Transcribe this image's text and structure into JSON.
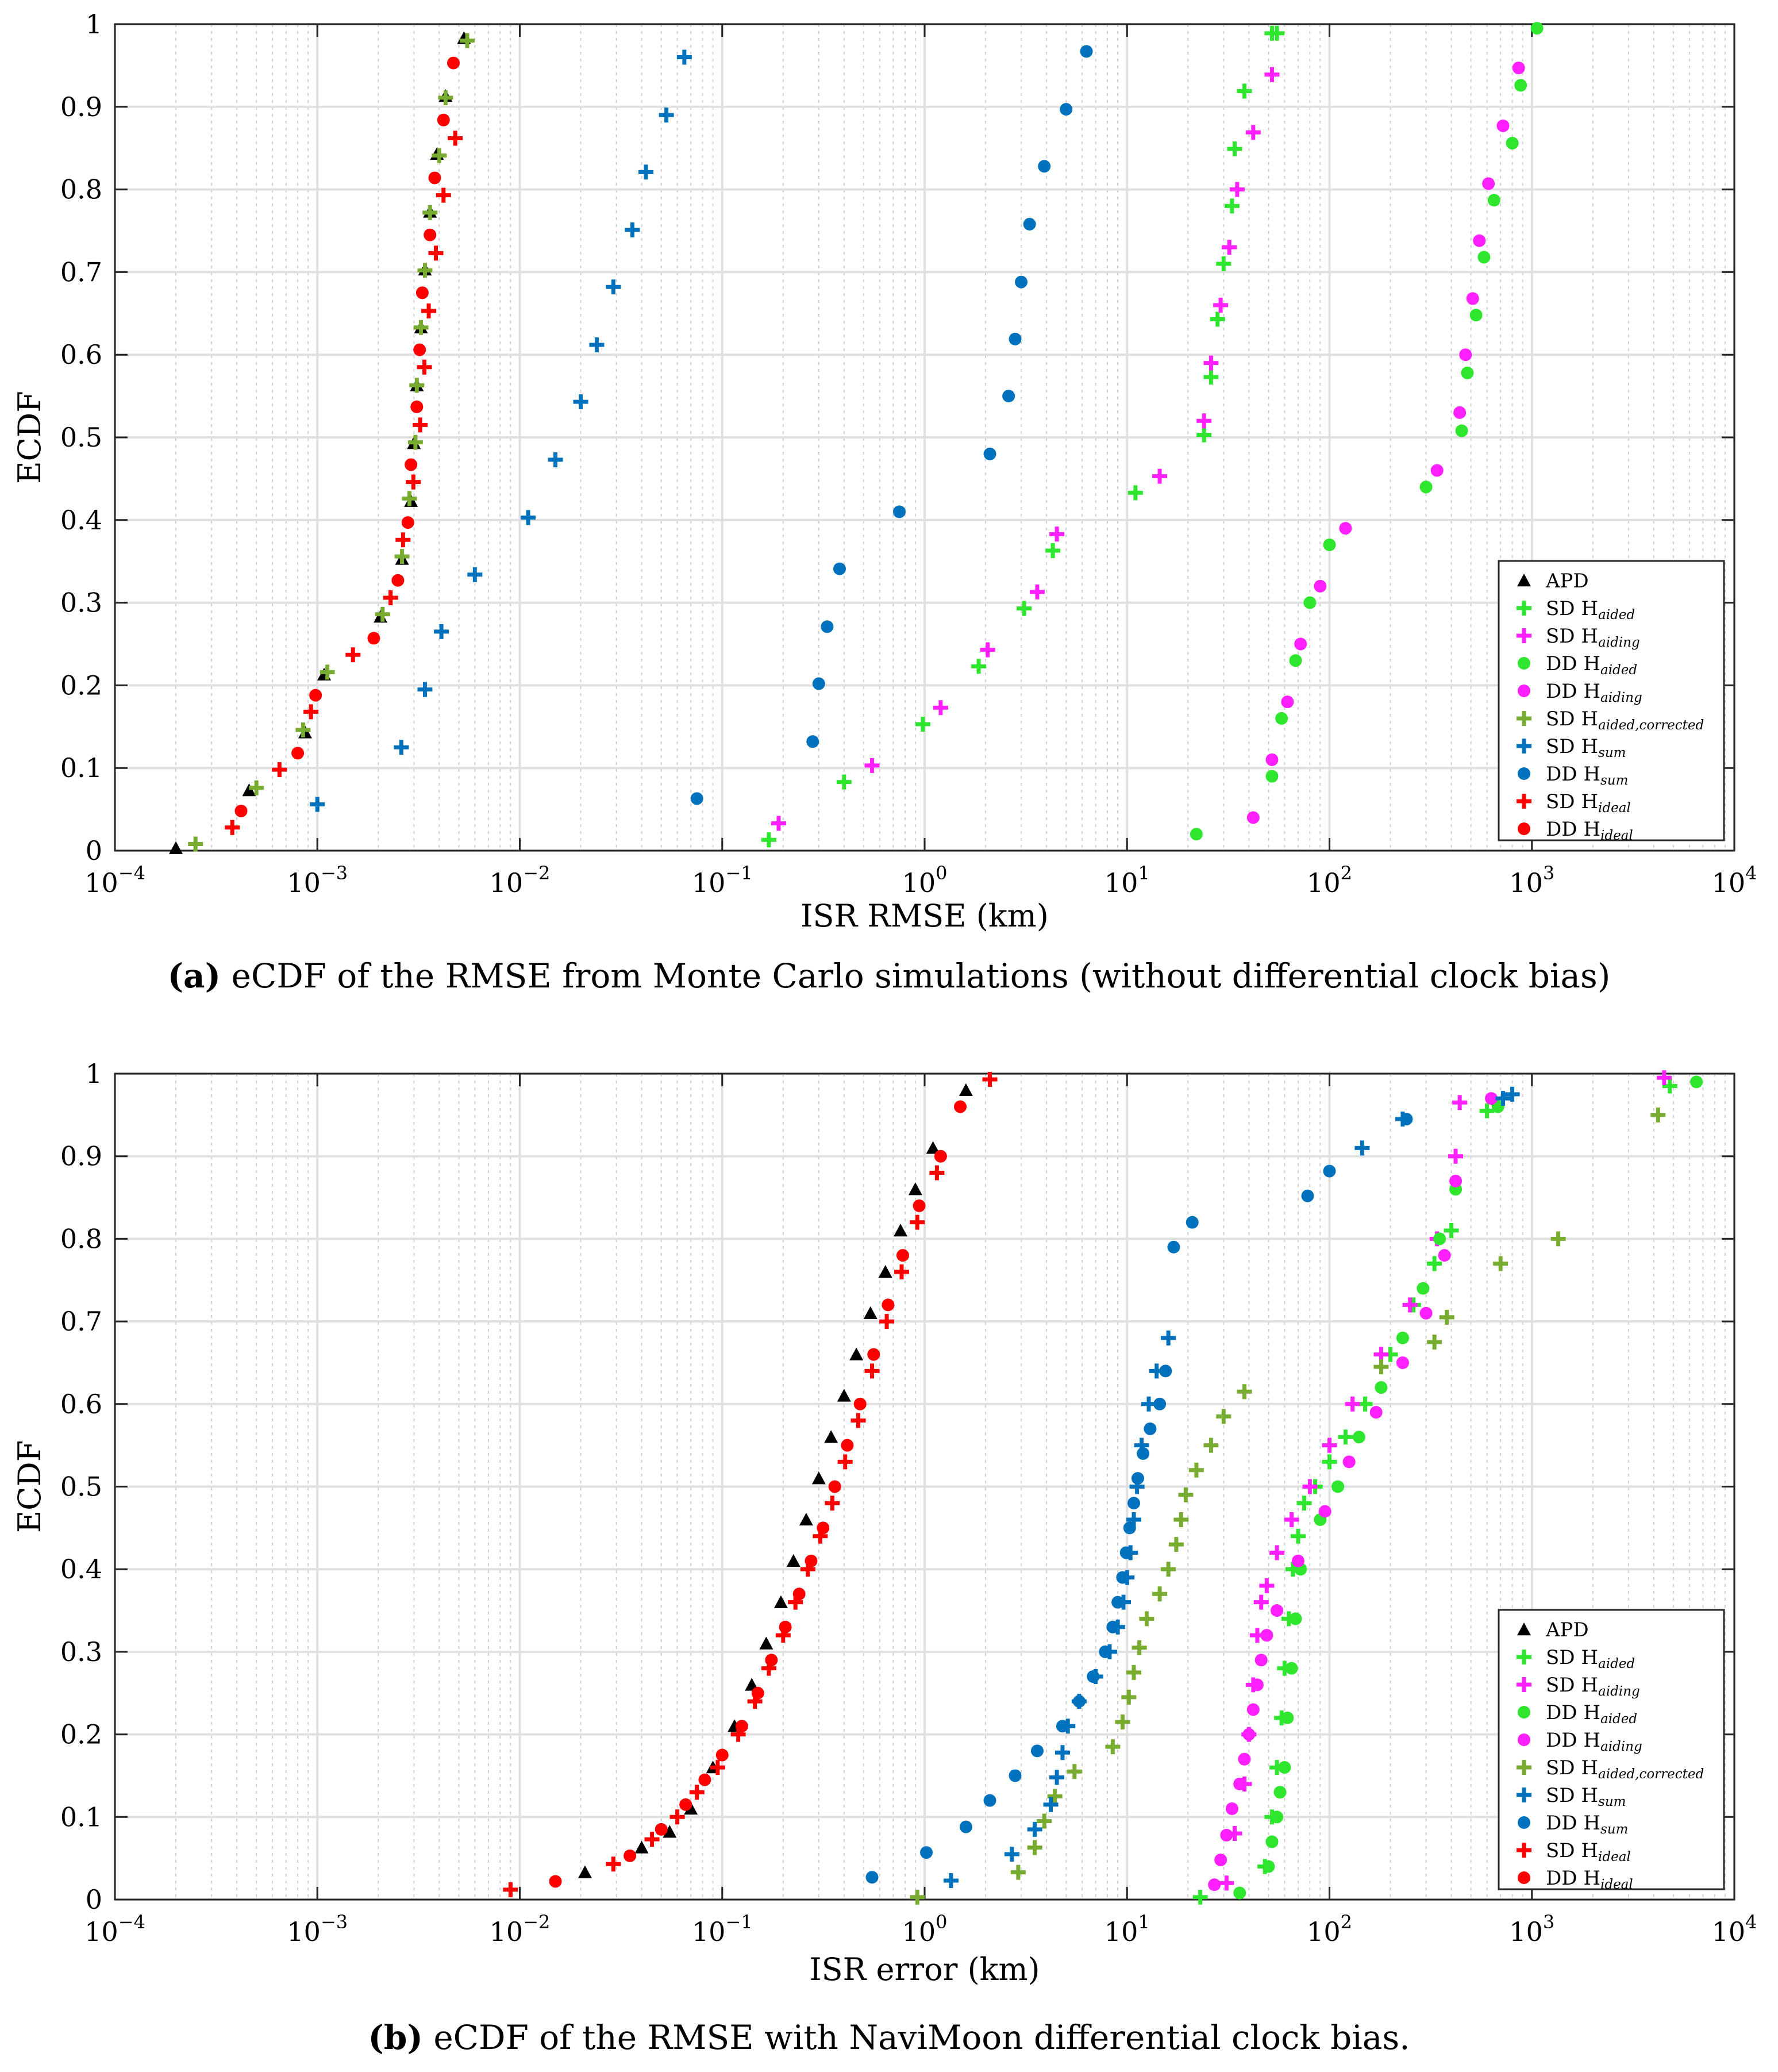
{
  "legend_entries": [
    {
      "key": "apd",
      "name": "APD",
      "sub": "",
      "marker": "triangle",
      "color": "#000000"
    },
    {
      "key": "sd_aided",
      "name": "SD H",
      "sub": "aided",
      "marker": "plus",
      "color": "#2EE62E"
    },
    {
      "key": "sd_aiding",
      "name": "SD H",
      "sub": "aiding",
      "marker": "plus",
      "color": "#FF1FFF"
    },
    {
      "key": "dd_aided",
      "name": "DD H",
      "sub": "aided",
      "marker": "dot",
      "color": "#2EE62E"
    },
    {
      "key": "dd_aiding",
      "name": "DD H",
      "sub": "aiding",
      "marker": "dot",
      "color": "#FF1FFF"
    },
    {
      "key": "sd_corr",
      "name": "SD H",
      "sub": "aided,corrected",
      "marker": "plus",
      "color": "#77AC30"
    },
    {
      "key": "sd_sum",
      "name": "SD H",
      "sub": "sum",
      "marker": "plus",
      "color": "#0072BD"
    },
    {
      "key": "dd_sum",
      "name": "DD H",
      "sub": "sum",
      "marker": "dot",
      "color": "#0072BD"
    },
    {
      "key": "sd_ideal",
      "name": "SD H",
      "sub": "ideal",
      "marker": "plus",
      "color": "#FF0000"
    },
    {
      "key": "dd_ideal",
      "name": "DD H",
      "sub": "ideal",
      "marker": "dot",
      "color": "#FF0000"
    }
  ],
  "chart_data": [
    {
      "type": "scatter",
      "panel": "a",
      "caption_label": "(a)",
      "caption_text": " eCDF of the RMSE from Monte Carlo simulations (without differential clock bias)",
      "xlabel": "ISR RMSE (km)",
      "ylabel": "ECDF",
      "xscale": "log",
      "xlim": [
        0.0001,
        10000
      ],
      "ylim": [
        0,
        1
      ],
      "x_tick_exponents": [
        -4,
        -3,
        -2,
        -1,
        0,
        1,
        2,
        3,
        4
      ],
      "y_tick_labels": [
        "0",
        "0.1",
        "0.2",
        "0.3",
        "0.4",
        "0.5",
        "0.6",
        "0.7",
        "0.8",
        "0.9",
        "1"
      ],
      "grid": true,
      "legend_position": "lower-right",
      "series": [
        {
          "key": "apd",
          "name": "APD",
          "x": [
            0.0002,
            0.00046,
            0.00087,
            0.00108,
            0.00205,
            0.00262,
            0.0029,
            0.003,
            0.0031,
            0.00325,
            0.0034,
            0.0036,
            0.0039,
            0.0043,
            0.0053
          ],
          "y": [
            0.003,
            0.073,
            0.143,
            0.213,
            0.283,
            0.353,
            0.423,
            0.493,
            0.563,
            0.633,
            0.703,
            0.773,
            0.843,
            0.913,
            0.983
          ]
        },
        {
          "key": "sd_aided",
          "name": "SD H_aided",
          "x": [
            0.17,
            0.4,
            0.98,
            1.85,
            3.1,
            4.3,
            11,
            24,
            26,
            28,
            30,
            33,
            34,
            38,
            52,
            55
          ],
          "y": [
            0.013,
            0.083,
            0.153,
            0.223,
            0.293,
            0.363,
            0.433,
            0.503,
            0.573,
            0.643,
            0.71,
            0.78,
            0.849,
            0.919,
            0.989,
            0.989
          ]
        },
        {
          "key": "sd_aiding",
          "name": "SD H_aiding",
          "x": [
            0.19,
            0.55,
            1.2,
            2.05,
            3.6,
            4.5,
            14.5,
            24,
            26,
            29,
            32,
            35,
            42,
            52
          ],
          "y": [
            0.033,
            0.103,
            0.173,
            0.243,
            0.313,
            0.383,
            0.453,
            0.52,
            0.59,
            0.66,
            0.73,
            0.8,
            0.869,
            0.939
          ]
        },
        {
          "key": "dd_aided",
          "name": "DD H_aided",
          "x": [
            22,
            52,
            58,
            68,
            80,
            100,
            300,
            450,
            480,
            530,
            580,
            650,
            800,
            880,
            1060
          ],
          "y": [
            0.02,
            0.09,
            0.16,
            0.23,
            0.3,
            0.37,
            0.44,
            0.508,
            0.578,
            0.648,
            0.718,
            0.787,
            0.856,
            0.926,
            0.995
          ]
        },
        {
          "key": "dd_aiding",
          "name": "DD H_aiding",
          "x": [
            42,
            52,
            62,
            72,
            90,
            120,
            340,
            440,
            470,
            510,
            550,
            610,
            720,
            860
          ],
          "y": [
            0.04,
            0.11,
            0.18,
            0.25,
            0.32,
            0.39,
            0.46,
            0.53,
            0.6,
            0.668,
            0.738,
            0.807,
            0.877,
            0.947
          ]
        },
        {
          "key": "sd_corr",
          "name": "SD H_aided,corrected",
          "x": [
            0.00025,
            0.0005,
            0.00085,
            0.00112,
            0.0021,
            0.00262,
            0.00285,
            0.00305,
            0.0031,
            0.00325,
            0.0034,
            0.0036,
            0.004,
            0.0043,
            0.0055
          ],
          "y": [
            0.008,
            0.076,
            0.146,
            0.216,
            0.286,
            0.356,
            0.426,
            0.494,
            0.563,
            0.633,
            0.702,
            0.772,
            0.841,
            0.911,
            0.98
          ]
        },
        {
          "key": "sd_sum",
          "name": "SD H_sum",
          "x": [
            0.001,
            0.0026,
            0.0034,
            0.0041,
            0.006,
            0.011,
            0.015,
            0.02,
            0.024,
            0.029,
            0.036,
            0.042,
            0.053,
            0.065
          ],
          "y": [
            0.056,
            0.125,
            0.195,
            0.265,
            0.334,
            0.403,
            0.473,
            0.543,
            0.612,
            0.682,
            0.751,
            0.821,
            0.89,
            0.96
          ]
        },
        {
          "key": "dd_sum",
          "name": "DD H_sum",
          "x": [
            0.075,
            0.28,
            0.3,
            0.33,
            0.38,
            0.75,
            2.1,
            2.6,
            2.8,
            3.0,
            3.3,
            3.9,
            5.0,
            6.3
          ],
          "y": [
            0.063,
            0.132,
            0.202,
            0.271,
            0.341,
            0.41,
            0.48,
            0.55,
            0.619,
            0.688,
            0.758,
            0.828,
            0.897,
            0.967
          ]
        },
        {
          "key": "sd_ideal",
          "name": "SD H_ideal",
          "x": [
            0.00038,
            0.00065,
            0.00093,
            0.0015,
            0.0023,
            0.00265,
            0.00298,
            0.00322,
            0.00338,
            0.00355,
            0.00385,
            0.0042,
            0.0048
          ],
          "y": [
            0.028,
            0.098,
            0.168,
            0.237,
            0.306,
            0.376,
            0.446,
            0.515,
            0.585,
            0.653,
            0.723,
            0.793,
            0.862
          ]
        },
        {
          "key": "dd_ideal",
          "name": "DD H_ideal",
          "x": [
            0.00042,
            0.0008,
            0.00098,
            0.0019,
            0.0025,
            0.0028,
            0.0029,
            0.0031,
            0.0032,
            0.0033,
            0.0036,
            0.0038,
            0.0042,
            0.0047
          ],
          "y": [
            0.048,
            0.118,
            0.188,
            0.257,
            0.327,
            0.397,
            0.467,
            0.537,
            0.606,
            0.675,
            0.745,
            0.814,
            0.884,
            0.953
          ]
        }
      ]
    },
    {
      "type": "scatter",
      "panel": "b",
      "caption_label": "(b)",
      "caption_text": " eCDF of the RMSE with NaviMoon differential clock bias.",
      "xlabel": "ISR error (km)",
      "ylabel": "ECDF",
      "xscale": "log",
      "xlim": [
        0.0001,
        10000
      ],
      "ylim": [
        0,
        1
      ],
      "x_tick_exponents": [
        -4,
        -3,
        -2,
        -1,
        0,
        1,
        2,
        3,
        4
      ],
      "y_tick_labels": [
        "0",
        "0.1",
        "0.2",
        "0.3",
        "0.4",
        "0.5",
        "0.6",
        "0.7",
        "0.8",
        "0.9",
        "1"
      ],
      "grid": true,
      "legend_position": "lower-right",
      "series": [
        {
          "key": "apd",
          "name": "APD",
          "x": [
            0.021,
            0.04,
            0.055,
            0.07,
            0.09,
            0.115,
            0.14,
            0.165,
            0.195,
            0.225,
            0.26,
            0.3,
            0.345,
            0.4,
            0.46,
            0.54,
            0.64,
            0.76,
            0.9,
            1.1,
            1.6
          ],
          "y": [
            0.033,
            0.063,
            0.082,
            0.11,
            0.16,
            0.21,
            0.26,
            0.31,
            0.36,
            0.41,
            0.46,
            0.51,
            0.56,
            0.61,
            0.66,
            0.71,
            0.76,
            0.81,
            0.86,
            0.91,
            0.98
          ]
        },
        {
          "key": "sd_aided",
          "name": "SD H_aided",
          "x": [
            23,
            48,
            52,
            55,
            58,
            60,
            63,
            66,
            70,
            75,
            85,
            100,
            120,
            150,
            200,
            260,
            330,
            400,
            600,
            4800
          ],
          "y": [
            0.003,
            0.04,
            0.1,
            0.16,
            0.22,
            0.28,
            0.34,
            0.4,
            0.44,
            0.48,
            0.5,
            0.53,
            0.56,
            0.6,
            0.66,
            0.72,
            0.77,
            0.81,
            0.955,
            0.985
          ]
        },
        {
          "key": "sd_aiding",
          "name": "SD H_aiding",
          "x": [
            31,
            34,
            38,
            40,
            42,
            44,
            46,
            49,
            55,
            65,
            80,
            100,
            130,
            180,
            250,
            340,
            420,
            440,
            4500
          ],
          "y": [
            0.02,
            0.08,
            0.14,
            0.2,
            0.26,
            0.32,
            0.36,
            0.38,
            0.42,
            0.46,
            0.5,
            0.55,
            0.6,
            0.66,
            0.72,
            0.8,
            0.9,
            0.965,
            0.995
          ]
        },
        {
          "key": "dd_aided",
          "name": "DD H_aided",
          "x": [
            36,
            50,
            52,
            55,
            57,
            60,
            62,
            65,
            68,
            72,
            90,
            110,
            140,
            180,
            230,
            290,
            350,
            420,
            680,
            6500
          ],
          "y": [
            0.008,
            0.04,
            0.07,
            0.1,
            0.13,
            0.16,
            0.22,
            0.28,
            0.34,
            0.4,
            0.46,
            0.5,
            0.56,
            0.62,
            0.68,
            0.74,
            0.8,
            0.86,
            0.96,
            0.99
          ]
        },
        {
          "key": "dd_aiding",
          "name": "DD H_aiding",
          "x": [
            27,
            29,
            31,
            33,
            36,
            38,
            40,
            42,
            44,
            46,
            49,
            55,
            70,
            95,
            125,
            170,
            230,
            300,
            370,
            420,
            630
          ],
          "y": [
            0.018,
            0.048,
            0.078,
            0.11,
            0.14,
            0.17,
            0.2,
            0.23,
            0.26,
            0.29,
            0.32,
            0.35,
            0.41,
            0.47,
            0.53,
            0.59,
            0.65,
            0.71,
            0.78,
            0.87,
            0.97
          ]
        },
        {
          "key": "sd_corr",
          "name": "SD H_aided,corrected",
          "x": [
            0.92,
            2.9,
            3.5,
            3.9,
            4.4,
            5.5,
            8.5,
            9.5,
            10.2,
            10.8,
            11.5,
            12.5,
            14.5,
            16,
            17.5,
            18.5,
            19.5,
            22,
            26,
            30,
            38,
            180,
            330,
            380,
            700,
            1350,
            4200
          ],
          "y": [
            0.003,
            0.033,
            0.063,
            0.095,
            0.125,
            0.155,
            0.185,
            0.215,
            0.245,
            0.275,
            0.305,
            0.34,
            0.37,
            0.4,
            0.43,
            0.46,
            0.49,
            0.52,
            0.55,
            0.585,
            0.615,
            0.645,
            0.675,
            0.705,
            0.77,
            0.8,
            0.95
          ]
        },
        {
          "key": "sd_sum",
          "name": "SD H_sum",
          "x": [
            1.35,
            2.7,
            3.5,
            4.2,
            4.5,
            4.8,
            5.1,
            5.8,
            7,
            8.2,
            9,
            9.6,
            10,
            10.4,
            10.8,
            11.2,
            11.8,
            12.8,
            14,
            16,
            145,
            230,
            720,
            800
          ],
          "y": [
            0.023,
            0.055,
            0.085,
            0.115,
            0.148,
            0.178,
            0.21,
            0.24,
            0.27,
            0.3,
            0.33,
            0.36,
            0.39,
            0.42,
            0.46,
            0.5,
            0.55,
            0.6,
            0.64,
            0.68,
            0.91,
            0.945,
            0.97,
            0.975
          ]
        },
        {
          "key": "dd_sum",
          "name": "DD H_sum",
          "x": [
            0.55,
            1.02,
            1.6,
            2.1,
            2.8,
            3.6,
            4.8,
            5.8,
            6.8,
            7.8,
            8.5,
            9.0,
            9.5,
            9.9,
            10.3,
            10.8,
            11.3,
            12,
            13,
            14.5,
            15.5,
            17,
            21,
            78,
            100,
            240
          ],
          "y": [
            0.027,
            0.057,
            0.088,
            0.12,
            0.15,
            0.18,
            0.21,
            0.24,
            0.27,
            0.3,
            0.33,
            0.36,
            0.39,
            0.42,
            0.45,
            0.48,
            0.51,
            0.54,
            0.57,
            0.6,
            0.64,
            0.79,
            0.82,
            0.852,
            0.882,
            0.945
          ]
        },
        {
          "key": "sd_ideal",
          "name": "SD H_ideal",
          "x": [
            0.009,
            0.029,
            0.045,
            0.06,
            0.075,
            0.095,
            0.12,
            0.145,
            0.17,
            0.2,
            0.23,
            0.265,
            0.305,
            0.35,
            0.405,
            0.47,
            0.55,
            0.65,
            0.77,
            0.92,
            1.15,
            2.1
          ],
          "y": [
            0.012,
            0.043,
            0.073,
            0.1,
            0.13,
            0.16,
            0.2,
            0.24,
            0.28,
            0.32,
            0.36,
            0.4,
            0.44,
            0.48,
            0.53,
            0.58,
            0.64,
            0.7,
            0.76,
            0.82,
            0.88,
            0.993
          ]
        },
        {
          "key": "dd_ideal",
          "name": "DD H_ideal",
          "x": [
            0.015,
            0.035,
            0.05,
            0.066,
            0.082,
            0.1,
            0.125,
            0.15,
            0.175,
            0.205,
            0.24,
            0.275,
            0.315,
            0.36,
            0.415,
            0.48,
            0.56,
            0.66,
            0.78,
            0.94,
            1.2,
            1.5
          ],
          "y": [
            0.022,
            0.053,
            0.085,
            0.115,
            0.145,
            0.175,
            0.21,
            0.25,
            0.29,
            0.33,
            0.37,
            0.41,
            0.45,
            0.5,
            0.55,
            0.6,
            0.66,
            0.72,
            0.78,
            0.84,
            0.9,
            0.96
          ]
        }
      ]
    }
  ]
}
